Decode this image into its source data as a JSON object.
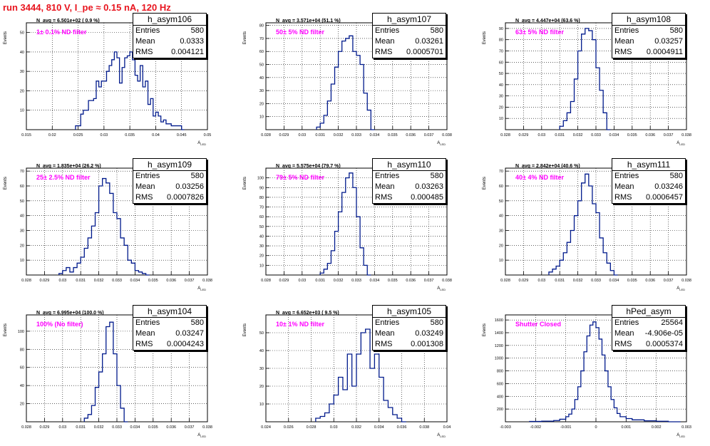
{
  "header": {
    "run_title": "run 3444,   810 V, I_pe ≈ 0.15 nA, 120 Hz"
  },
  "colors": {
    "title": "#e8141e",
    "histogram": "#001a8c",
    "filter_label": "#ff00ff"
  },
  "chart_data": [
    {
      "type": "histogram",
      "name": "h_asym106",
      "navg_label": "N_avg = 6.501e+02 ( 0.9 %)",
      "filter_label": "1± 0.1% ND filter",
      "stats": [
        [
          "Entries",
          "580"
        ],
        [
          "Mean",
          "0.0333"
        ],
        [
          "RMS",
          "0.004121"
        ]
      ],
      "xlabel": "A_{LED}",
      "ylabel": "Events",
      "xlim": [
        0.015,
        0.05
      ],
      "ylim": [
        0,
        55
      ],
      "xticks": [
        "0.015",
        "0.02",
        "0.025",
        "0.03",
        "0.035",
        "0.04",
        "0.045",
        "0.05"
      ],
      "yticks": [
        10,
        20,
        30,
        40,
        50
      ],
      "x": [
        0.0245,
        0.025,
        0.0255,
        0.026,
        0.0265,
        0.027,
        0.0275,
        0.028,
        0.0285,
        0.029,
        0.0295,
        0.03,
        0.0305,
        0.031,
        0.0315,
        0.032,
        0.0325,
        0.033,
        0.0335,
        0.034,
        0.0345,
        0.035,
        0.0355,
        0.036,
        0.0365,
        0.037,
        0.0375,
        0.038,
        0.0385,
        0.039,
        0.0395,
        0.04,
        0.0405,
        0.041,
        0.0415,
        0.042,
        0.0425,
        0.043,
        0.0435,
        0.044,
        0.0445,
        0.045
      ],
      "values": [
        2,
        2,
        8,
        10,
        10,
        15,
        15,
        16,
        25,
        22,
        25,
        25,
        30,
        33,
        36,
        40,
        37,
        24,
        32,
        37,
        38,
        40,
        36,
        28,
        25,
        33,
        22,
        25,
        13,
        16,
        7,
        9,
        7,
        4,
        5,
        3,
        3,
        2,
        2,
        2,
        2,
        0
      ]
    },
    {
      "type": "histogram",
      "name": "h_asym107",
      "navg_label": "N_avg = 3.571e+04 (51.1 %)",
      "filter_label": "50± 5% ND filter",
      "stats": [
        [
          "Entries",
          "580"
        ],
        [
          "Mean",
          "0.03261"
        ],
        [
          "RMS",
          "0.0005701"
        ]
      ],
      "xlabel": "A_{LED}",
      "ylabel": "Events",
      "xlim": [
        0.028,
        0.038
      ],
      "ylim": [
        0,
        82
      ],
      "xticks": [
        "0.028",
        "0.029",
        "0.03",
        "0.031",
        "0.032",
        "0.033",
        "0.034",
        "0.035",
        "0.036",
        "0.037",
        "0.038"
      ],
      "yticks": [
        10,
        20,
        30,
        40,
        50,
        60,
        70,
        80
      ],
      "x": [
        0.0308,
        0.031,
        0.0312,
        0.0314,
        0.0316,
        0.0318,
        0.032,
        0.0322,
        0.0324,
        0.0326,
        0.0328,
        0.033,
        0.0332,
        0.0334,
        0.0336,
        0.0338
      ],
      "values": [
        2,
        5,
        11,
        22,
        35,
        48,
        60,
        68,
        70,
        72,
        60,
        57,
        50,
        28,
        15,
        0
      ]
    },
    {
      "type": "histogram",
      "name": "h_asym108",
      "navg_label": "N_avg = 4.447e+04 (63.6 %)",
      "filter_label": "63± 5% ND filter",
      "stats": [
        [
          "Entries",
          "580"
        ],
        [
          "Mean",
          "0.03257"
        ],
        [
          "RMS",
          "0.0004911"
        ]
      ],
      "xlabel": "A_{LED}",
      "ylabel": "Events",
      "xlim": [
        0.028,
        0.038
      ],
      "ylim": [
        0,
        95
      ],
      "xticks": [
        "0.028",
        "0.029",
        "0.03",
        "0.031",
        "0.032",
        "0.033",
        "0.034",
        "0.035",
        "0.036",
        "0.037",
        "0.038"
      ],
      "yticks": [
        10,
        20,
        30,
        40,
        50,
        60,
        70,
        80,
        90
      ],
      "x": [
        0.031,
        0.0312,
        0.0314,
        0.0316,
        0.0318,
        0.032,
        0.0322,
        0.0324,
        0.0326,
        0.0328,
        0.033,
        0.0332,
        0.0334,
        0.0336
      ],
      "values": [
        3,
        8,
        15,
        25,
        45,
        70,
        85,
        90,
        88,
        80,
        55,
        35,
        15,
        0
      ]
    },
    {
      "type": "histogram",
      "name": "h_asym109",
      "navg_label": "N_avg = 1.835e+04 (26.2 %)",
      "filter_label": "25± 2.5% ND filter",
      "stats": [
        [
          "Entries",
          "580"
        ],
        [
          "Mean",
          "0.03256"
        ],
        [
          "RMS",
          "0.0007826"
        ]
      ],
      "xlabel": "A_{LED}",
      "ylabel": "Events",
      "xlim": [
        0.028,
        0.038
      ],
      "ylim": [
        0,
        72
      ],
      "xticks": [
        "0.028",
        "0.029",
        "0.03",
        "0.031",
        "0.032",
        "0.033",
        "0.034",
        "0.035",
        "0.036",
        "0.037",
        "0.038"
      ],
      "yticks": [
        10,
        20,
        30,
        40,
        50,
        60,
        70
      ],
      "x": [
        0.0298,
        0.03,
        0.0302,
        0.0304,
        0.0306,
        0.0308,
        0.031,
        0.0312,
        0.0314,
        0.0316,
        0.0318,
        0.032,
        0.0322,
        0.0324,
        0.0326,
        0.0328,
        0.033,
        0.0332,
        0.0334,
        0.0336,
        0.0338,
        0.034,
        0.0342,
        0.0344,
        0.0346
      ],
      "values": [
        1,
        3,
        5,
        2,
        5,
        8,
        12,
        18,
        25,
        33,
        42,
        60,
        65,
        62,
        55,
        42,
        38,
        25,
        20,
        10,
        8,
        3,
        2,
        1,
        0
      ]
    },
    {
      "type": "histogram",
      "name": "h_asym110",
      "navg_label": "N_avg = 5.575e+04 (79.7 %)",
      "filter_label": "79± 5% ND filter",
      "stats": [
        [
          "Entries",
          "580"
        ],
        [
          "Mean",
          "0.03263"
        ],
        [
          "RMS",
          "0.000485"
        ]
      ],
      "xlabel": "A_{LED}",
      "ylabel": "Events",
      "xlim": [
        0.028,
        0.038
      ],
      "ylim": [
        0,
        110
      ],
      "xticks": [
        "0.028",
        "0.029",
        "0.03",
        "0.031",
        "0.032",
        "0.033",
        "0.034",
        "0.035",
        "0.036",
        "0.037",
        "0.038"
      ],
      "yticks": [
        10,
        20,
        30,
        40,
        50,
        60,
        70,
        80,
        90,
        100
      ],
      "x": [
        0.031,
        0.0312,
        0.0314,
        0.0316,
        0.0318,
        0.032,
        0.0322,
        0.0324,
        0.0326,
        0.0328,
        0.033,
        0.0332,
        0.0334,
        0.0336
      ],
      "values": [
        2,
        6,
        12,
        25,
        45,
        65,
        85,
        100,
        105,
        90,
        60,
        28,
        10,
        0
      ]
    },
    {
      "type": "histogram",
      "name": "h_asym111",
      "navg_label": "N_avg = 2.842e+04 (40.6 %)",
      "filter_label": "40± 4% ND filter",
      "stats": [
        [
          "Entries",
          "580"
        ],
        [
          "Mean",
          "0.03246"
        ],
        [
          "RMS",
          "0.0006457"
        ]
      ],
      "xlabel": "A_{LED}",
      "ylabel": "Events",
      "xlim": [
        0.028,
        0.038
      ],
      "ylim": [
        0,
        72
      ],
      "xticks": [
        "0.028",
        "0.029",
        "0.03",
        "0.031",
        "0.032",
        "0.033",
        "0.034",
        "0.035",
        "0.036",
        "0.037",
        "0.038"
      ],
      "yticks": [
        10,
        20,
        30,
        40,
        50,
        60,
        70
      ],
      "x": [
        0.0304,
        0.0306,
        0.0308,
        0.031,
        0.0312,
        0.0314,
        0.0316,
        0.0318,
        0.032,
        0.0322,
        0.0324,
        0.0326,
        0.0328,
        0.033,
        0.0332,
        0.0334,
        0.0336,
        0.0338,
        0.034
      ],
      "values": [
        2,
        4,
        6,
        10,
        15,
        22,
        30,
        40,
        50,
        62,
        68,
        60,
        48,
        42,
        25,
        15,
        8,
        3,
        0
      ]
    },
    {
      "type": "histogram",
      "name": "h_asym104",
      "navg_label": "N_avg = 6.995e+04 (100.0 %)",
      "filter_label": "100% (No filter)",
      "stats": [
        [
          "Entries",
          "580"
        ],
        [
          "Mean",
          "0.03247"
        ],
        [
          "RMS",
          "0.0004243"
        ]
      ],
      "xlabel": "A_{LED}",
      "ylabel": "Events",
      "xlim": [
        0.028,
        0.038
      ],
      "ylim": [
        0,
        118
      ],
      "xticks": [
        "0.028",
        "0.029",
        "0.03",
        "0.031",
        "0.032",
        "0.033",
        "0.034",
        "0.035",
        "0.036",
        "0.037",
        "0.038"
      ],
      "yticks": [
        20,
        40,
        60,
        80,
        100
      ],
      "x": [
        0.0312,
        0.0314,
        0.0316,
        0.0318,
        0.032,
        0.0322,
        0.0324,
        0.0326,
        0.0328,
        0.033,
        0.0332,
        0.0334
      ],
      "values": [
        4,
        8,
        18,
        38,
        55,
        75,
        105,
        110,
        75,
        40,
        15,
        0
      ]
    },
    {
      "type": "histogram",
      "name": "h_asym105",
      "navg_label": "N_avg = 6.652e+03 ( 9.5 %)",
      "filter_label": "10± 1% ND filter",
      "stats": [
        [
          "Entries",
          "580"
        ],
        [
          "Mean",
          "0.03249"
        ],
        [
          "RMS",
          "0.001308"
        ]
      ],
      "xlabel": "A_{LED}",
      "ylabel": "Events",
      "xlim": [
        0.024,
        0.04
      ],
      "ylim": [
        0,
        60
      ],
      "xticks": [
        "0.024",
        "0.026",
        "0.028",
        "0.03",
        "0.032",
        "0.034",
        "0.036",
        "0.038",
        "0.04"
      ],
      "yticks": [
        10,
        20,
        30,
        40,
        50
      ],
      "x": [
        0.0284,
        0.0288,
        0.0292,
        0.0296,
        0.03,
        0.0304,
        0.0308,
        0.0312,
        0.0316,
        0.032,
        0.0324,
        0.0328,
        0.0332,
        0.0336,
        0.034,
        0.0344,
        0.0348,
        0.0352,
        0.0356,
        0.036
      ],
      "values": [
        2,
        3,
        5,
        10,
        15,
        25,
        18,
        38,
        20,
        38,
        50,
        52,
        30,
        38,
        25,
        12,
        8,
        4,
        2,
        0
      ]
    },
    {
      "type": "histogram",
      "name": "hPed_asym",
      "navg_label": "",
      "filter_label": "Shutter Closed",
      "stats": [
        [
          "Entries",
          "25564"
        ],
        [
          "Mean",
          "-4.906e-05"
        ],
        [
          "RMS",
          "0.0005374"
        ]
      ],
      "xlabel": "A_{LED}",
      "ylabel": "Events",
      "xlim": [
        -0.003,
        0.003
      ],
      "ylim": [
        0,
        1680
      ],
      "xticks": [
        "-0.003",
        "-0.002",
        "-0.001",
        "0",
        "0.001",
        "0.002",
        "0.003"
      ],
      "yticks": [
        200,
        400,
        600,
        800,
        1000,
        1200,
        1400,
        1600
      ],
      "x": [
        -0.0022,
        -0.0018,
        -0.0014,
        -0.0012,
        -0.001,
        -0.0009,
        -0.0008,
        -0.0007,
        -0.0006,
        -0.0005,
        -0.0004,
        -0.0003,
        -0.0002,
        -0.0001,
        0,
        0.0001,
        0.0002,
        0.0003,
        0.0004,
        0.0005,
        0.0006,
        0.0007,
        0.0008,
        0.001,
        0.0012,
        0.0016,
        0.002,
        0.0024
      ],
      "values": [
        5,
        10,
        20,
        40,
        80,
        120,
        200,
        350,
        550,
        800,
        1100,
        1350,
        1520,
        1570,
        1480,
        1300,
        1050,
        800,
        550,
        350,
        220,
        130,
        80,
        50,
        30,
        15,
        8,
        0
      ]
    }
  ]
}
